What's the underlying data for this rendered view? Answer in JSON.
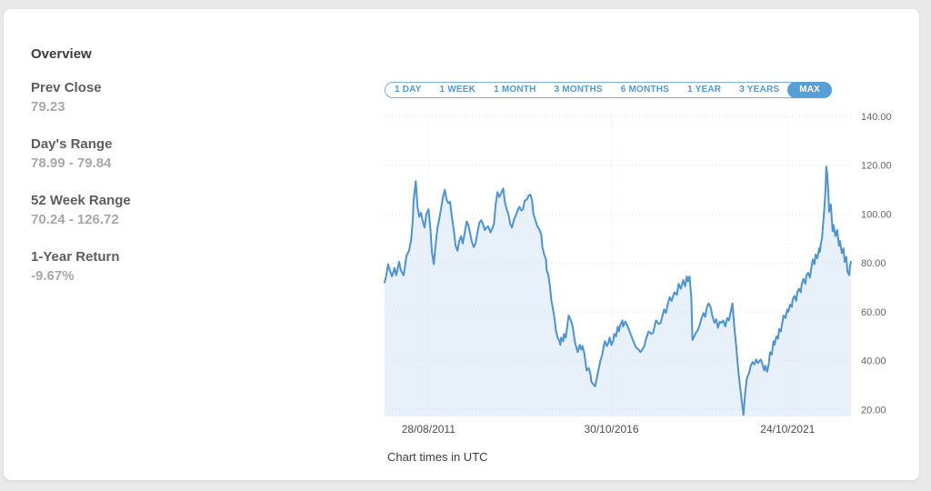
{
  "page": {
    "background": "#e9e9e9",
    "card_background": "#ffffff"
  },
  "overview": {
    "title": "Overview",
    "stats": [
      {
        "label": "Prev Close",
        "value": "79.23"
      },
      {
        "label": "Day's Range",
        "value": "78.99 - 79.84"
      },
      {
        "label": "52 Week Range",
        "value": "70.24 - 126.72"
      },
      {
        "label": "1-Year Return",
        "value": "-9.67%"
      }
    ]
  },
  "range_tabs": {
    "options": [
      "1 DAY",
      "1 WEEK",
      "1 MONTH",
      "3 MONTHS",
      "6 MONTHS",
      "1 YEAR",
      "3 YEARS",
      "MAX"
    ],
    "active": "MAX",
    "accent_color": "#56a0da",
    "text_color": "#4f9ad6"
  },
  "footnote": "Chart times in UTC",
  "chart_data": {
    "type": "area",
    "title": "",
    "xlabel": "",
    "ylabel": "",
    "series_name": "price-max-range",
    "line_color": "#4a94d6",
    "fill_color": "#e8f1f9",
    "grid_color": "#dcdfe3",
    "vgrid_color": "#e4e7ea",
    "ytick_color": "#666666",
    "xtick_color": "#4c4c4c",
    "grid": true,
    "legend": false,
    "xlim": [
      2010.42,
      2023.6
    ],
    "ylim": [
      17.2,
      140
    ],
    "x_ticks": [
      {
        "t": 2011.66,
        "label": "28/08/2011"
      },
      {
        "t": 2016.83,
        "label": "30/10/2016"
      },
      {
        "t": 2021.81,
        "label": "24/10/2021"
      }
    ],
    "y_ticks": [
      {
        "v": 20,
        "label": "20.00"
      },
      {
        "v": 40,
        "label": "40.00"
      },
      {
        "v": 60,
        "label": "60.00"
      },
      {
        "v": 80,
        "label": "80.00"
      },
      {
        "v": 100,
        "label": "100.00"
      },
      {
        "v": 120,
        "label": "120.00"
      },
      {
        "v": 140,
        "label": "140.00"
      }
    ],
    "points": [
      [
        2010.42,
        72
      ],
      [
        2010.47,
        75
      ],
      [
        2010.52,
        79.5
      ],
      [
        2010.57,
        77
      ],
      [
        2010.63,
        74.5
      ],
      [
        2010.7,
        78
      ],
      [
        2010.75,
        75
      ],
      [
        2010.83,
        80.5
      ],
      [
        2010.88,
        77
      ],
      [
        2010.96,
        75
      ],
      [
        2011.04,
        83
      ],
      [
        2011.11,
        85
      ],
      [
        2011.17,
        89.5
      ],
      [
        2011.22,
        98
      ],
      [
        2011.24,
        105.5
      ],
      [
        2011.3,
        113.5
      ],
      [
        2011.35,
        103
      ],
      [
        2011.4,
        99
      ],
      [
        2011.45,
        100.5
      ],
      [
        2011.5,
        97
      ],
      [
        2011.55,
        94.5
      ],
      [
        2011.6,
        100
      ],
      [
        2011.66,
        102
      ],
      [
        2011.71,
        95
      ],
      [
        2011.76,
        84
      ],
      [
        2011.81,
        79.5
      ],
      [
        2011.86,
        87
      ],
      [
        2011.91,
        94
      ],
      [
        2011.99,
        100
      ],
      [
        2012.07,
        107
      ],
      [
        2012.12,
        110
      ],
      [
        2012.17,
        106
      ],
      [
        2012.22,
        104.5
      ],
      [
        2012.27,
        105
      ],
      [
        2012.32,
        99
      ],
      [
        2012.38,
        93
      ],
      [
        2012.43,
        87
      ],
      [
        2012.48,
        85
      ],
      [
        2012.53,
        89
      ],
      [
        2012.58,
        91
      ],
      [
        2012.63,
        88
      ],
      [
        2012.69,
        93
      ],
      [
        2012.74,
        97
      ],
      [
        2012.79,
        95.5
      ],
      [
        2012.84,
        92
      ],
      [
        2012.89,
        88.5
      ],
      [
        2012.94,
        86.5
      ],
      [
        2012.99,
        88
      ],
      [
        2013.05,
        93
      ],
      [
        2013.1,
        96.5
      ],
      [
        2013.15,
        97.5
      ],
      [
        2013.2,
        96
      ],
      [
        2013.25,
        93.5
      ],
      [
        2013.3,
        94.5
      ],
      [
        2013.35,
        95
      ],
      [
        2013.41,
        92.5
      ],
      [
        2013.46,
        94
      ],
      [
        2013.51,
        96
      ],
      [
        2013.56,
        104
      ],
      [
        2013.61,
        109
      ],
      [
        2013.66,
        107
      ],
      [
        2013.71,
        108.5
      ],
      [
        2013.77,
        110.5
      ],
      [
        2013.82,
        105
      ],
      [
        2013.87,
        102
      ],
      [
        2013.92,
        100
      ],
      [
        2013.97,
        96
      ],
      [
        2014.02,
        94.5
      ],
      [
        2014.08,
        98
      ],
      [
        2014.13,
        99.5
      ],
      [
        2014.18,
        101.5
      ],
      [
        2014.23,
        103
      ],
      [
        2014.28,
        101.5
      ],
      [
        2014.33,
        102
      ],
      [
        2014.38,
        105.5
      ],
      [
        2014.44,
        106
      ],
      [
        2014.49,
        107.5
      ],
      [
        2014.54,
        108
      ],
      [
        2014.59,
        105.5
      ],
      [
        2014.62,
        100.5
      ],
      [
        2014.67,
        98
      ],
      [
        2014.74,
        95
      ],
      [
        2014.8,
        93.5
      ],
      [
        2014.85,
        91.5
      ],
      [
        2014.88,
        86.5
      ],
      [
        2014.93,
        83.5
      ],
      [
        2014.98,
        81.5
      ],
      [
        2015.0,
        77
      ],
      [
        2015.05,
        75
      ],
      [
        2015.1,
        69.5
      ],
      [
        2015.13,
        65
      ],
      [
        2015.18,
        61
      ],
      [
        2015.23,
        56.5
      ],
      [
        2015.26,
        52.5
      ],
      [
        2015.31,
        49.5
      ],
      [
        2015.36,
        48
      ],
      [
        2015.39,
        46.5
      ],
      [
        2015.41,
        49.5
      ],
      [
        2015.47,
        48
      ],
      [
        2015.49,
        51
      ],
      [
        2015.54,
        49.5
      ],
      [
        2015.59,
        55
      ],
      [
        2015.62,
        58.5
      ],
      [
        2015.67,
        57
      ],
      [
        2015.72,
        55
      ],
      [
        2015.75,
        52.5
      ],
      [
        2015.8,
        47.5
      ],
      [
        2015.85,
        45
      ],
      [
        2015.88,
        43.5
      ],
      [
        2015.93,
        46.5
      ],
      [
        2015.98,
        44.5
      ],
      [
        2016.01,
        46
      ],
      [
        2016.06,
        43.5
      ],
      [
        2016.11,
        38
      ],
      [
        2016.13,
        36
      ],
      [
        2016.19,
        37
      ],
      [
        2016.24,
        34.5
      ],
      [
        2016.26,
        31.5
      ],
      [
        2016.31,
        30.5
      ],
      [
        2016.37,
        29.5
      ],
      [
        2016.39,
        31
      ],
      [
        2016.44,
        34.5
      ],
      [
        2016.49,
        38
      ],
      [
        2016.52,
        40
      ],
      [
        2016.57,
        42.5
      ],
      [
        2016.62,
        46.5
      ],
      [
        2016.65,
        48
      ],
      [
        2016.7,
        46
      ],
      [
        2016.75,
        47.5
      ],
      [
        2016.78,
        49.5
      ],
      [
        2016.83,
        46.5
      ],
      [
        2016.88,
        48
      ],
      [
        2016.91,
        51
      ],
      [
        2016.96,
        50
      ],
      [
        2017.01,
        54
      ],
      [
        2017.04,
        52
      ],
      [
        2017.09,
        55
      ],
      [
        2017.14,
        56.5
      ],
      [
        2017.16,
        54
      ],
      [
        2017.22,
        56
      ],
      [
        2017.29,
        54
      ],
      [
        2017.37,
        51
      ],
      [
        2017.45,
        48
      ],
      [
        2017.52,
        45.5
      ],
      [
        2017.6,
        44.5
      ],
      [
        2017.65,
        43.5
      ],
      [
        2017.7,
        44.5
      ],
      [
        2017.76,
        46
      ],
      [
        2017.81,
        49
      ],
      [
        2017.88,
        52
      ],
      [
        2017.96,
        51
      ],
      [
        2018.01,
        51.5
      ],
      [
        2018.09,
        56.5
      ],
      [
        2018.17,
        55
      ],
      [
        2018.22,
        55.5
      ],
      [
        2018.32,
        61
      ],
      [
        2018.37,
        59.5
      ],
      [
        2018.42,
        63
      ],
      [
        2018.48,
        66
      ],
      [
        2018.53,
        64.5
      ],
      [
        2018.61,
        68
      ],
      [
        2018.68,
        67
      ],
      [
        2018.73,
        71.5
      ],
      [
        2018.79,
        69.5
      ],
      [
        2018.86,
        73
      ],
      [
        2018.91,
        70.5
      ],
      [
        2018.96,
        74.5
      ],
      [
        2018.99,
        72.5
      ],
      [
        2019.04,
        74.5
      ],
      [
        2019.09,
        65
      ],
      [
        2019.12,
        48.5
      ],
      [
        2019.17,
        50
      ],
      [
        2019.22,
        51.5
      ],
      [
        2019.27,
        52.5
      ],
      [
        2019.33,
        55
      ],
      [
        2019.38,
        57.5
      ],
      [
        2019.43,
        59.5
      ],
      [
        2019.48,
        58
      ],
      [
        2019.53,
        62
      ],
      [
        2019.58,
        63.5
      ],
      [
        2019.63,
        62
      ],
      [
        2019.69,
        58
      ],
      [
        2019.74,
        55.5
      ],
      [
        2019.79,
        57
      ],
      [
        2019.84,
        53.5
      ],
      [
        2019.89,
        56
      ],
      [
        2019.94,
        55.5
      ],
      [
        2019.99,
        56.5
      ],
      [
        2020.05,
        54
      ],
      [
        2020.1,
        57.5
      ],
      [
        2020.15,
        56.5
      ],
      [
        2020.2,
        60
      ],
      [
        2020.25,
        63.5
      ],
      [
        2020.3,
        54
      ],
      [
        2020.35,
        47
      ],
      [
        2020.41,
        37
      ],
      [
        2020.46,
        30
      ],
      [
        2020.51,
        24
      ],
      [
        2020.56,
        17.8
      ],
      [
        2020.61,
        27
      ],
      [
        2020.66,
        33
      ],
      [
        2020.72,
        35
      ],
      [
        2020.77,
        38
      ],
      [
        2020.82,
        39.5
      ],
      [
        2020.87,
        38.5
      ],
      [
        2020.92,
        40.5
      ],
      [
        2020.97,
        39
      ],
      [
        2021.05,
        40.5
      ],
      [
        2021.1,
        38.5
      ],
      [
        2021.15,
        36
      ],
      [
        2021.18,
        38
      ],
      [
        2021.23,
        35.5
      ],
      [
        2021.28,
        39
      ],
      [
        2021.31,
        43.5
      ],
      [
        2021.36,
        42.5
      ],
      [
        2021.41,
        48
      ],
      [
        2021.44,
        46.5
      ],
      [
        2021.49,
        50
      ],
      [
        2021.54,
        49
      ],
      [
        2021.57,
        53
      ],
      [
        2021.62,
        52
      ],
      [
        2021.67,
        56.5
      ],
      [
        2021.69,
        58.5
      ],
      [
        2021.75,
        57.5
      ],
      [
        2021.8,
        61
      ],
      [
        2021.83,
        60
      ],
      [
        2021.88,
        63
      ],
      [
        2021.93,
        62
      ],
      [
        2021.95,
        65
      ],
      [
        2022.0,
        66.5
      ],
      [
        2022.05,
        64.5
      ],
      [
        2022.08,
        68
      ],
      [
        2022.13,
        69.5
      ],
      [
        2022.18,
        68
      ],
      [
        2022.21,
        71.5
      ],
      [
        2022.26,
        73.5
      ],
      [
        2022.31,
        71.5
      ],
      [
        2022.34,
        75
      ],
      [
        2022.39,
        76
      ],
      [
        2022.44,
        74
      ],
      [
        2022.47,
        77
      ],
      [
        2022.52,
        81.5
      ],
      [
        2022.57,
        79.5
      ],
      [
        2022.6,
        83.5
      ],
      [
        2022.65,
        82
      ],
      [
        2022.7,
        86
      ],
      [
        2022.72,
        84.5
      ],
      [
        2022.75,
        88
      ],
      [
        2022.78,
        90
      ],
      [
        2022.8,
        94
      ],
      [
        2022.83,
        99
      ],
      [
        2022.85,
        103
      ],
      [
        2022.88,
        110
      ],
      [
        2022.9,
        119.5
      ],
      [
        2022.93,
        116
      ],
      [
        2022.96,
        109
      ],
      [
        2022.98,
        101
      ],
      [
        2023.03,
        104
      ],
      [
        2023.08,
        93
      ],
      [
        2023.11,
        95.5
      ],
      [
        2023.16,
        91
      ],
      [
        2023.21,
        93.5
      ],
      [
        2023.26,
        87
      ],
      [
        2023.29,
        89
      ],
      [
        2023.34,
        84
      ],
      [
        2023.39,
        86
      ],
      [
        2023.42,
        80.5
      ],
      [
        2023.47,
        82.5
      ],
      [
        2023.5,
        76.5
      ],
      [
        2023.55,
        75
      ],
      [
        2023.57,
        78.5
      ],
      [
        2023.6,
        80.5
      ]
    ]
  }
}
